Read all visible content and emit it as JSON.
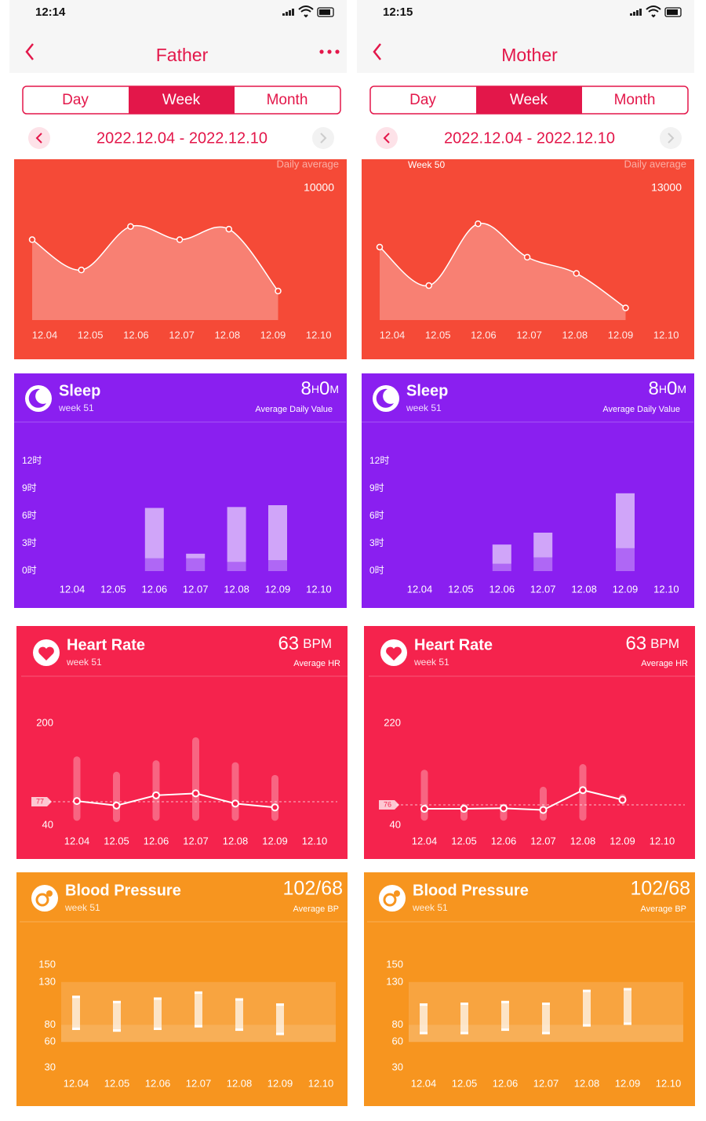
{
  "panels": [
    {
      "time": "12:14",
      "title": "Father",
      "menu_button": true,
      "tabs": [
        "Day",
        "Week",
        "Month"
      ],
      "selected_tab": 1,
      "date_range": "2022.12.04 - 2022.12.10",
      "days": [
        "12.04",
        "12.05",
        "12.06",
        "12.07",
        "12.08",
        "12.09",
        "12.10"
      ],
      "steps": {
        "color": "#f54a37",
        "caption": "Daily average",
        "reference": 10000,
        "values": [
          6100,
          3800,
          7100,
          6100,
          6900,
          2200,
          null
        ]
      },
      "sleep": {
        "color": "#8a1ff0",
        "title": "Sleep",
        "subtitle": "week 51",
        "value": {
          "hours": 8,
          "hours_unit": "H",
          "minutes": 0,
          "minutes_unit": "M"
        },
        "caption": "Average Daily Value",
        "yticks": [
          {
            "value": 0,
            "label": "0时"
          },
          {
            "value": 3,
            "label": "3时"
          },
          {
            "value": 6,
            "label": "6时"
          },
          {
            "value": 9,
            "label": "9时"
          },
          {
            "value": 12,
            "label": "12时"
          }
        ],
        "series": [
          {
            "color": "rgba(255,255,255,0.32)",
            "values": [
              null,
              null,
              1.4,
              1.4,
              1.0,
              1.2,
              null
            ]
          },
          {
            "color": "rgba(255,255,255,0.6)",
            "values": [
              null,
              null,
              5.5,
              0.5,
              6.0,
              6.0,
              null
            ]
          }
        ]
      },
      "heart_rate": {
        "color": "#f5234d",
        "title": "Heart Rate",
        "subtitle": "week 51",
        "value": 63,
        "unit": "BPM",
        "caption": "Average HR",
        "yticks": [
          40,
          200
        ],
        "reference": 77,
        "average": [
          78,
          71,
          87,
          90,
          74,
          68,
          null
        ],
        "min": [
          47,
          45,
          47,
          47,
          47,
          47,
          null
        ],
        "max": [
          148,
          124,
          142,
          178,
          139,
          119,
          null
        ]
      },
      "blood_pressure": {
        "color": "#f7951f",
        "title": "Blood Pressure",
        "subtitle": "week 51",
        "value": "102/68",
        "caption": "Average BP",
        "yticks": [
          30,
          60,
          80,
          130,
          150
        ],
        "systolic": [
          114,
          108,
          112,
          119,
          111,
          105,
          null
        ],
        "diastolic": [
          74,
          72,
          74,
          77,
          73,
          68,
          null
        ]
      }
    },
    {
      "time": "12:15",
      "title": "Mother",
      "menu_button": false,
      "tabs": [
        "Day",
        "Week",
        "Month"
      ],
      "selected_tab": 1,
      "date_range": "2022.12.04 - 2022.12.10",
      "days": [
        "12.04",
        "12.05",
        "12.06",
        "12.07",
        "12.08",
        "12.09",
        "12.10"
      ],
      "steps": {
        "color": "#f54a37",
        "caption": "Daily average",
        "week_label": "Week 50",
        "reference": 13000,
        "values": [
          7200,
          3400,
          9500,
          6200,
          4600,
          1200,
          null
        ]
      },
      "sleep": {
        "color": "#8a1ff0",
        "title": "Sleep",
        "subtitle": "week 51",
        "value": {
          "hours": 8,
          "hours_unit": "H",
          "minutes": 0,
          "minutes_unit": "M"
        },
        "caption": "Average Daily Value",
        "yticks": [
          {
            "value": 0,
            "label": "0时"
          },
          {
            "value": 3,
            "label": "3时"
          },
          {
            "value": 6,
            "label": "6时"
          },
          {
            "value": 9,
            "label": "9时"
          },
          {
            "value": 12,
            "label": "12时"
          }
        ],
        "series": [
          {
            "color": "rgba(255,255,255,0.32)",
            "values": [
              null,
              null,
              0.8,
              1.5,
              null,
              2.5,
              null
            ]
          },
          {
            "color": "rgba(255,255,255,0.6)",
            "values": [
              null,
              null,
              2.1,
              2.7,
              null,
              6.0,
              null
            ]
          }
        ]
      },
      "heart_rate": {
        "color": "#f5234d",
        "title": "Heart Rate",
        "subtitle": "week 51",
        "value": 63,
        "unit": "BPM",
        "caption": "Average HR",
        "yticks": [
          40,
          220
        ],
        "reference": 76,
        "average": [
          69,
          69,
          70,
          67,
          102,
          85,
          null
        ],
        "min": [
          48,
          48,
          48,
          48,
          48,
          77,
          null
        ],
        "max": [
          138,
          78,
          78,
          108,
          148,
          95,
          null
        ]
      },
      "blood_pressure": {
        "color": "#f7951f",
        "title": "Blood Pressure",
        "subtitle": "week 51",
        "value": "102/68",
        "caption": "Average BP",
        "yticks": [
          30,
          60,
          80,
          130,
          150
        ],
        "systolic": [
          105,
          106,
          108,
          106,
          121,
          123,
          null
        ],
        "diastolic": [
          69,
          69,
          73,
          69,
          78,
          80,
          null
        ]
      }
    }
  ]
}
